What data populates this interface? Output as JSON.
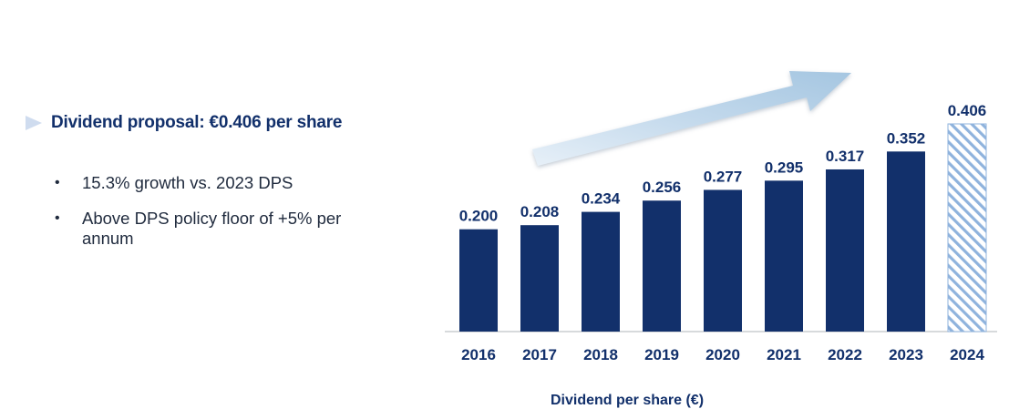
{
  "headline": "Dividend proposal: €0.406 per share",
  "bullets": [
    "15.3% growth vs. 2023 DPS",
    "Above DPS policy floor of +5% per annum"
  ],
  "colors": {
    "bar": "#12306b",
    "text": "#12306b",
    "hatch": "#8fb3dd",
    "arrow": "#a9c8e2",
    "headline_marker": "#cfdcef"
  },
  "chart_data": {
    "type": "bar",
    "title": "",
    "xlabel": "Dividend per share (€)",
    "ylabel": "",
    "categories": [
      "2016",
      "2017",
      "2018",
      "2019",
      "2020",
      "2021",
      "2022",
      "2023",
      "2024"
    ],
    "values": [
      0.2,
      0.208,
      0.234,
      0.256,
      0.277,
      0.295,
      0.317,
      0.352,
      0.406
    ],
    "value_labels": [
      "0.200",
      "0.208",
      "0.234",
      "0.256",
      "0.277",
      "0.295",
      "0.317",
      "0.352",
      "0.406"
    ],
    "proposed_category": "2024",
    "ylim": [
      0,
      0.406
    ],
    "grid": false,
    "legend": "none",
    "annotation": "upward trend arrow"
  }
}
